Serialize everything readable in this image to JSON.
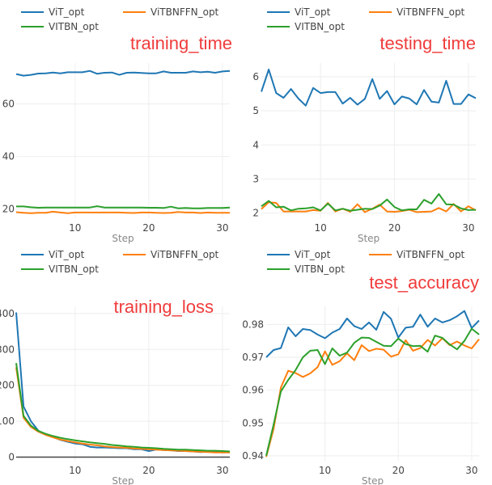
{
  "legend": [
    {
      "name": "ViT_opt",
      "color": "#1f77b4"
    },
    {
      "name": "ViTBNFFN_opt",
      "color": "#ff7f0e"
    },
    {
      "name": "VITBN_opt",
      "color": "#2ca02c"
    }
  ],
  "chart_data": [
    {
      "type": "line",
      "title": "training_time",
      "xlabel": "Step",
      "ylabel": "",
      "x": [
        2,
        3,
        4,
        5,
        6,
        7,
        8,
        9,
        10,
        11,
        12,
        13,
        14,
        15,
        16,
        17,
        18,
        19,
        20,
        21,
        22,
        23,
        24,
        25,
        26,
        27,
        28,
        29,
        30,
        31
      ],
      "xlim": [
        2,
        31
      ],
      "ylim": [
        16.5,
        75.6
      ],
      "xticks": [
        10,
        20,
        30
      ],
      "yticks": [
        20,
        40,
        60
      ],
      "grid": true,
      "legend_position": "top-left",
      "series": [
        {
          "name": "ViT_opt",
          "values": [
            71.4,
            70.8,
            71.1,
            71.6,
            71.7,
            72.0,
            71.7,
            72.1,
            72.1,
            72.1,
            72.6,
            71.5,
            71.9,
            72.0,
            71.1,
            71.9,
            72.0,
            71.8,
            71.7,
            71.7,
            72.4,
            71.9,
            71.9,
            71.9,
            72.4,
            72.1,
            72.3,
            71.9,
            72.4,
            72.6
          ]
        },
        {
          "name": "ViTBNFFN_opt",
          "values": [
            18.8,
            18.6,
            18.4,
            18.6,
            18.6,
            19.0,
            18.7,
            18.4,
            18.7,
            18.7,
            18.7,
            18.7,
            18.7,
            18.7,
            18.7,
            18.6,
            18.5,
            18.7,
            18.7,
            18.6,
            18.5,
            18.6,
            18.9,
            18.7,
            18.7,
            18.5,
            18.7,
            18.6,
            18.6,
            18.6
          ]
        },
        {
          "name": "VITBN_opt",
          "values": [
            21.0,
            21.0,
            20.7,
            20.5,
            20.6,
            20.6,
            20.6,
            20.6,
            20.6,
            20.6,
            20.6,
            21.1,
            20.6,
            20.6,
            20.6,
            20.6,
            20.6,
            20.6,
            20.5,
            20.5,
            20.4,
            20.9,
            20.3,
            20.4,
            20.3,
            20.3,
            20.4,
            20.4,
            20.4,
            20.6
          ]
        }
      ]
    },
    {
      "type": "line",
      "title": "testing_time",
      "xlabel": "Step",
      "ylabel": "",
      "x": [
        2,
        3,
        4,
        5,
        6,
        7,
        8,
        9,
        10,
        11,
        12,
        13,
        14,
        15,
        16,
        17,
        18,
        19,
        20,
        21,
        22,
        23,
        24,
        25,
        26,
        27,
        28,
        29,
        30,
        31
      ],
      "xlim": [
        2,
        31
      ],
      "ylim": [
        1.85,
        6.4
      ],
      "xticks": [
        10,
        20,
        30
      ],
      "yticks": [
        2,
        3,
        4,
        5,
        6
      ],
      "grid": true,
      "legend_position": "top-left",
      "series": [
        {
          "name": "ViT_opt",
          "values": [
            5.56,
            6.21,
            5.52,
            5.38,
            5.64,
            5.36,
            5.15,
            5.67,
            5.52,
            5.55,
            5.55,
            5.21,
            5.38,
            5.18,
            5.35,
            5.93,
            5.35,
            5.58,
            5.19,
            5.42,
            5.36,
            5.19,
            5.61,
            5.27,
            5.24,
            5.88,
            5.2,
            5.2,
            5.48,
            5.37
          ]
        },
        {
          "name": "ViTBNFFN_opt",
          "values": [
            2.12,
            2.32,
            2.3,
            2.05,
            2.05,
            2.05,
            2.05,
            2.09,
            2.07,
            2.3,
            2.05,
            2.13,
            2.04,
            2.26,
            2.03,
            2.13,
            2.25,
            2.05,
            2.04,
            2.06,
            2.1,
            2.03,
            2.04,
            2.05,
            2.15,
            2.05,
            2.27,
            2.05,
            2.2,
            2.08
          ]
        },
        {
          "name": "VITBN_opt",
          "values": [
            2.2,
            2.36,
            2.17,
            2.19,
            2.08,
            2.13,
            2.14,
            2.17,
            2.08,
            2.28,
            2.08,
            2.13,
            2.07,
            2.1,
            2.13,
            2.12,
            2.22,
            2.4,
            2.18,
            2.08,
            2.11,
            2.11,
            2.39,
            2.28,
            2.56,
            2.26,
            2.25,
            2.14,
            2.09,
            2.1
          ]
        }
      ]
    },
    {
      "type": "line",
      "title": "training_loss",
      "xlabel": "Step",
      "ylabel": "",
      "x": [
        2,
        3,
        4,
        5,
        6,
        7,
        8,
        9,
        10,
        11,
        12,
        13,
        14,
        15,
        16,
        17,
        18,
        19,
        20,
        21,
        22,
        23,
        24,
        25,
        26,
        27,
        28,
        29,
        30,
        31
      ],
      "xlim": [
        2,
        31
      ],
      "ylim": [
        -10,
        420
      ],
      "xticks": [
        10,
        20,
        30
      ],
      "yticks": [
        0,
        100,
        200,
        300,
        400
      ],
      "grid": true,
      "legend_position": "top-left",
      "series": [
        {
          "name": "ViT_opt",
          "values": [
            403,
            141,
            100,
            74,
            63,
            56,
            48,
            43,
            38,
            36,
            29,
            27,
            27,
            26,
            25,
            25,
            22,
            22,
            17,
            21,
            20,
            19,
            17,
            17,
            16,
            14,
            15,
            15,
            13,
            14
          ]
        },
        {
          "name": "ViTBNFFN_opt",
          "values": [
            250,
            110,
            84,
            71,
            62,
            55,
            49,
            45,
            41,
            38,
            35,
            33,
            30,
            28,
            27,
            26,
            24,
            23,
            22,
            21,
            20,
            19,
            18,
            17,
            16,
            15,
            14,
            13,
            13,
            13
          ]
        },
        {
          "name": "VITBN_opt",
          "values": [
            262,
            115,
            88,
            73,
            65,
            59,
            54,
            50,
            47,
            44,
            41,
            39,
            37,
            34,
            32,
            30,
            29,
            27,
            26,
            25,
            23,
            22,
            21,
            21,
            20,
            19,
            18,
            18,
            17,
            16
          ]
        }
      ]
    },
    {
      "type": "line",
      "title": "test_accuracy",
      "xlabel": "Step",
      "ylabel": "",
      "x": [
        2,
        3,
        4,
        5,
        6,
        7,
        8,
        9,
        10,
        11,
        12,
        13,
        14,
        15,
        16,
        17,
        18,
        19,
        20,
        21,
        22,
        23,
        24,
        25,
        26,
        27,
        28,
        29,
        30,
        31
      ],
      "xlim": [
        2,
        31
      ],
      "ylim": [
        0.9385,
        0.9855
      ],
      "xticks": [
        10,
        20,
        30
      ],
      "yticks": [
        0.94,
        0.95,
        0.96,
        0.97,
        0.98
      ],
      "ytick_labels": [
        "0.94",
        "0.95",
        "0.96",
        "0.97",
        "0.98"
      ],
      "grid": true,
      "legend_position": "top-left",
      "series": [
        {
          "name": "ViT_opt",
          "values": [
            0.97,
            0.9722,
            0.9728,
            0.9791,
            0.9764,
            0.9786,
            0.9783,
            0.9769,
            0.9758,
            0.9775,
            0.9786,
            0.9818,
            0.9795,
            0.9786,
            0.9806,
            0.9784,
            0.9838,
            0.9817,
            0.976,
            0.979,
            0.9793,
            0.983,
            0.9793,
            0.9818,
            0.9806,
            0.9813,
            0.9825,
            0.9841,
            0.9789,
            0.9812
          ]
        },
        {
          "name": "ViTBNFFN_opt",
          "values": [
            0.9397,
            0.9482,
            0.9608,
            0.9659,
            0.9652,
            0.964,
            0.9651,
            0.967,
            0.9718,
            0.9677,
            0.9688,
            0.9712,
            0.9691,
            0.9737,
            0.9719,
            0.9726,
            0.9723,
            0.9702,
            0.9709,
            0.9752,
            0.972,
            0.9728,
            0.9753,
            0.9736,
            0.9758,
            0.9737,
            0.9748,
            0.9736,
            0.9727,
            0.9755
          ]
        },
        {
          "name": "VITBN_opt",
          "values": [
            0.94,
            0.9495,
            0.9596,
            0.9631,
            0.9661,
            0.97,
            0.972,
            0.9722,
            0.9679,
            0.9727,
            0.9705,
            0.9714,
            0.9744,
            0.976,
            0.9759,
            0.9747,
            0.9735,
            0.9734,
            0.9757,
            0.974,
            0.9734,
            0.9735,
            0.9717,
            0.9766,
            0.9759,
            0.9739,
            0.9724,
            0.975,
            0.9787,
            0.9769
          ]
        }
      ]
    }
  ]
}
